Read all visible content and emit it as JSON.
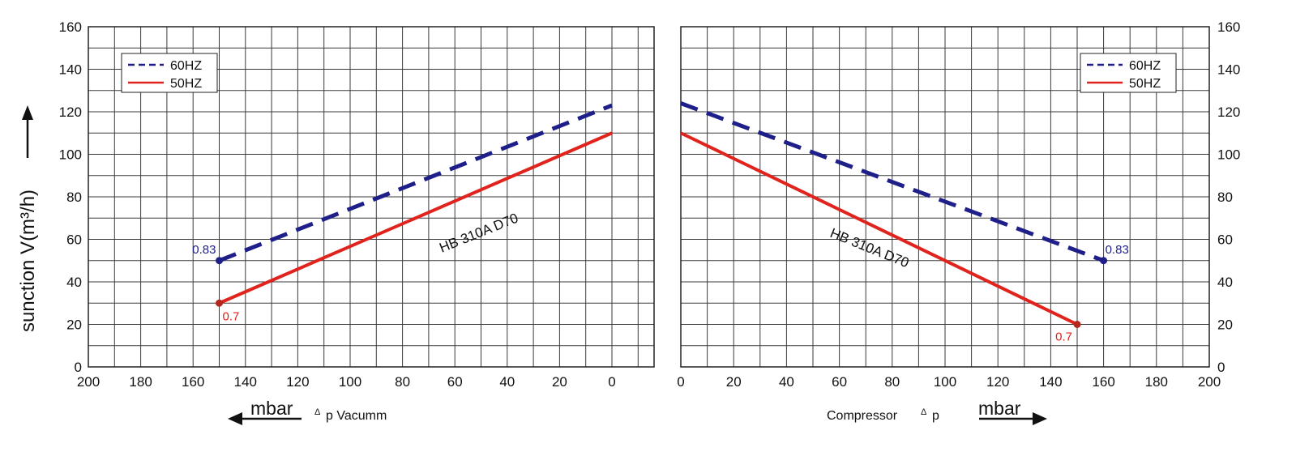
{
  "colors": {
    "series_60hz": "#1f1f8a",
    "series_50hz": "#e0231c",
    "grid": "#3a3a3a",
    "text": "#111111"
  },
  "chart_data": [
    {
      "type": "line",
      "panel": "vacuum",
      "xlim": [
        200,
        0
      ],
      "ylim": [
        0,
        160
      ],
      "x_ticks": [
        200,
        180,
        160,
        140,
        120,
        100,
        80,
        60,
        40,
        20,
        0
      ],
      "y_ticks": [
        0,
        20,
        40,
        60,
        80,
        100,
        120,
        140,
        160
      ],
      "ylabel": "sunction V(m³/h)",
      "xlabel": {
        "unit": "mbar",
        "delta": "Δ",
        "text": "p  Vacumm"
      },
      "grid": true,
      "legend_position": "top-left",
      "annotation": "HB 310A D70",
      "series": [
        {
          "name": "60HZ",
          "style": "dashed",
          "x": [
            150,
            0
          ],
          "y": [
            50,
            123
          ],
          "end_label": "0.83"
        },
        {
          "name": "50HZ",
          "style": "solid",
          "x": [
            150,
            0
          ],
          "y": [
            30,
            110
          ],
          "end_label": "0.7"
        }
      ]
    },
    {
      "type": "line",
      "panel": "compressor",
      "xlim": [
        0,
        200
      ],
      "ylim": [
        0,
        160
      ],
      "x_ticks": [
        0,
        20,
        40,
        60,
        80,
        100,
        120,
        140,
        160,
        180,
        200
      ],
      "y_ticks": [
        0,
        20,
        40,
        60,
        80,
        100,
        120,
        140,
        160
      ],
      "xlabel": {
        "text": "Compressor",
        "delta": "Δ",
        "after": "p",
        "unit": "mbar"
      },
      "grid": true,
      "legend_position": "top-right",
      "annotation": "HB 310A D70",
      "series": [
        {
          "name": "60HZ",
          "style": "dashed",
          "x": [
            0,
            160
          ],
          "y": [
            124,
            50
          ],
          "end_label": "0.83"
        },
        {
          "name": "50HZ",
          "style": "solid",
          "x": [
            0,
            150
          ],
          "y": [
            110,
            20
          ],
          "end_label": "0.7"
        }
      ]
    }
  ]
}
